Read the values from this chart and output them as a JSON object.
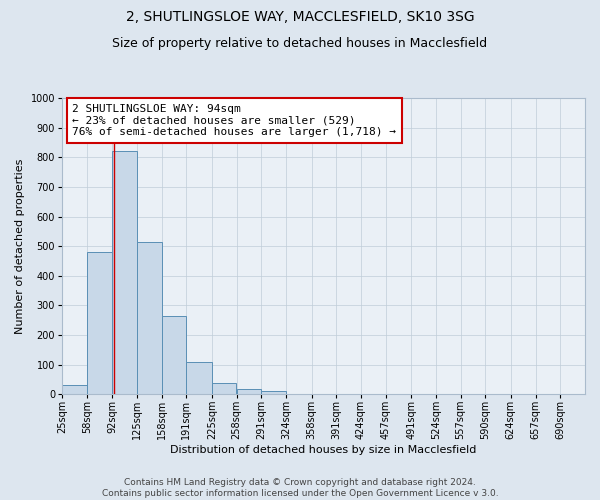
{
  "title1": "2, SHUTLINGSLOE WAY, MACCLESFIELD, SK10 3SG",
  "title2": "Size of property relative to detached houses in Macclesfield",
  "xlabel": "Distribution of detached houses by size in Macclesfield",
  "ylabel": "Number of detached properties",
  "footer1": "Contains HM Land Registry data © Crown copyright and database right 2024.",
  "footer2": "Contains public sector information licensed under the Open Government Licence v 3.0.",
  "annotation_line1": "2 SHUTLINGSLOE WAY: 94sqm",
  "annotation_line2": "← 23% of detached houses are smaller (529)",
  "annotation_line3": "76% of semi-detached houses are larger (1,718) →",
  "bar_left_edges": [
    25,
    58,
    92,
    125,
    158,
    191,
    225,
    258,
    291,
    324,
    358,
    391,
    424,
    457,
    491,
    524,
    557,
    590,
    624,
    657
  ],
  "bar_widths": [
    33,
    34,
    33,
    33,
    33,
    34,
    33,
    33,
    33,
    34,
    33,
    33,
    33,
    34,
    33,
    33,
    33,
    34,
    33,
    33
  ],
  "bar_heights": [
    30,
    480,
    820,
    515,
    265,
    110,
    38,
    18,
    10,
    0,
    0,
    0,
    0,
    0,
    0,
    0,
    0,
    0,
    0,
    0
  ],
  "tick_labels": [
    "25sqm",
    "58sqm",
    "92sqm",
    "125sqm",
    "158sqm",
    "191sqm",
    "225sqm",
    "258sqm",
    "291sqm",
    "324sqm",
    "358sqm",
    "391sqm",
    "424sqm",
    "457sqm",
    "491sqm",
    "524sqm",
    "557sqm",
    "590sqm",
    "624sqm",
    "657sqm",
    "690sqm"
  ],
  "bar_color": "#c8d8e8",
  "bar_edge_color": "#5a8fb5",
  "vline_x": 94,
  "vline_color": "#cc0000",
  "ylim": [
    0,
    1000
  ],
  "yticks": [
    0,
    100,
    200,
    300,
    400,
    500,
    600,
    700,
    800,
    900,
    1000
  ],
  "xlim_left": 25,
  "xlim_right": 723,
  "bg_color": "#dde6ef",
  "plot_bg_color": "#eaf0f6",
  "grid_color": "#c0cdd8",
  "annotation_box_facecolor": "#ffffff",
  "annotation_box_edgecolor": "#cc0000",
  "title1_fontsize": 10,
  "title2_fontsize": 9,
  "annotation_fontsize": 8,
  "axis_label_fontsize": 8,
  "tick_fontsize": 7,
  "footer_fontsize": 6.5
}
